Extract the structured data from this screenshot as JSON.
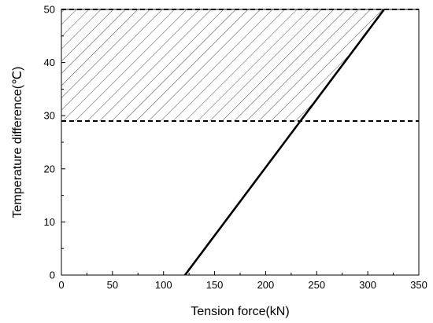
{
  "chart_data": {
    "type": "line",
    "xlabel": "Tension force(kN)",
    "ylabel": "Temperature difference(℃)",
    "xlim": [
      0,
      350
    ],
    "ylim": [
      0,
      50
    ],
    "x_ticks": [
      0,
      50,
      100,
      150,
      200,
      250,
      300,
      350
    ],
    "y_ticks": [
      0,
      10,
      20,
      30,
      40,
      50
    ],
    "grid": false,
    "series": [
      {
        "style": "solid",
        "color": "#000000",
        "points": [
          [
            121,
            0
          ],
          [
            316,
            50
          ]
        ]
      }
    ],
    "reference_lines": [
      {
        "axis": "y",
        "value": 50,
        "style": "dashed"
      },
      {
        "axis": "y",
        "value": 29,
        "style": "dashed"
      }
    ],
    "hatched_region": {
      "description": "area between y = 29 and y = 50, left of the solid line",
      "y_range": [
        29,
        50
      ],
      "pattern": "diagonal hatch"
    }
  }
}
